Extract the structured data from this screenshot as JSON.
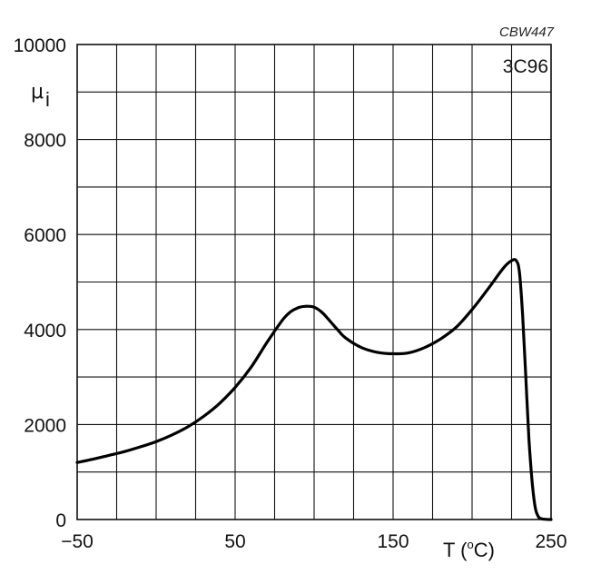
{
  "chart_data": {
    "type": "line",
    "figure_id": "CBW447",
    "material": "3C96",
    "xlabel_prefix": "T  (",
    "xlabel_sup": "o",
    "xlabel_suffix": "C)",
    "ylabel": "μ",
    "ylabel_sub": "i",
    "xlim": [
      -50,
      250
    ],
    "ylim": [
      0,
      10000
    ],
    "xticks": [
      -50,
      50,
      150,
      250
    ],
    "xtick_labels": [
      "−50",
      "50",
      "150",
      "250"
    ],
    "yticks": [
      0,
      2000,
      4000,
      6000,
      8000,
      10000
    ],
    "ytick_labels": [
      "0",
      "2000",
      "4000",
      "6000",
      "8000",
      "10000"
    ],
    "x_grid_step": 25,
    "y_grid_step": 1000,
    "grid": true,
    "series": [
      {
        "name": "3C96",
        "x": [
          -50,
          -40,
          -30,
          -20,
          -10,
          0,
          10,
          20,
          30,
          40,
          50,
          60,
          70,
          80,
          85,
          90,
          95,
          100,
          105,
          110,
          115,
          120,
          130,
          140,
          150,
          160,
          170,
          180,
          190,
          200,
          210,
          220,
          225,
          228,
          230,
          232,
          234,
          236,
          238,
          240,
          242,
          244,
          246,
          250
        ],
        "y": [
          1200,
          1270,
          1350,
          1430,
          1530,
          1640,
          1780,
          1950,
          2170,
          2440,
          2780,
          3200,
          3720,
          4200,
          4370,
          4460,
          4490,
          4470,
          4360,
          4180,
          3990,
          3820,
          3620,
          3520,
          3490,
          3510,
          3620,
          3800,
          4050,
          4420,
          4850,
          5300,
          5450,
          5450,
          5200,
          4300,
          3000,
          1700,
          800,
          250,
          60,
          15,
          5,
          0
        ]
      }
    ]
  }
}
